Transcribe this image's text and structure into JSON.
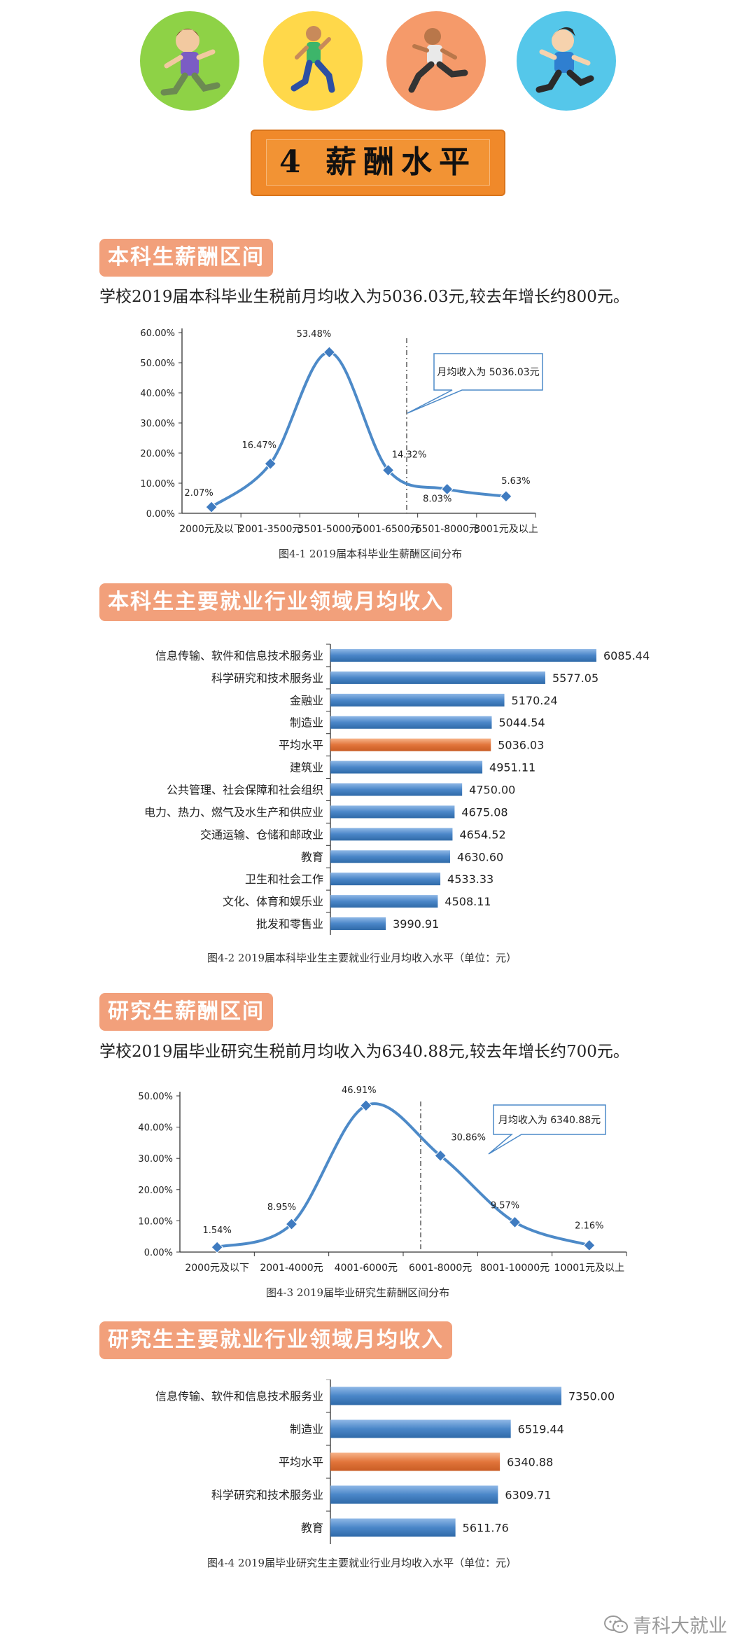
{
  "header": {
    "icons": [
      "running-girl-icon",
      "running-man-icon",
      "sprinter-icon",
      "running-boy-icon"
    ],
    "title": "4 薪酬水平",
    "colors": {
      "green": "#8ed246",
      "yellow": "#ffd84a",
      "orange": "#f59a6a",
      "blue": "#55c7ea",
      "accent": "#f0892a",
      "tag": "#f2a07b"
    }
  },
  "sections": {
    "undergrad_salary": {
      "tag": "本科生薪酬区间",
      "lead": "学校2019届本科毕业生税前月均收入为5036.03元,较去年增长约800元。",
      "caption": "图4-1  2019届本科毕业生薪酬区间分布"
    },
    "undergrad_industry": {
      "tag": "本科生主要就业行业领域月均收入",
      "caption": "图4-2  2019届本科毕业生主要就业行业月均收入水平（单位：元）"
    },
    "grad_salary": {
      "tag": "研究生薪酬区间",
      "lead": "学校2019届毕业研究生税前月均收入为6340.88元,较去年增长约700元。",
      "caption": "图4-3  2019届毕业研究生薪酬区间分布"
    },
    "grad_industry": {
      "tag": "研究生主要就业行业领域月均收入",
      "caption": "图4-4  2019届毕业研究生主要就业行业月均收入水平（单位：元）"
    }
  },
  "footer": {
    "account": "青科大就业",
    "icon": "wechat-icon"
  },
  "chart_data": [
    {
      "id": "undergrad_dist",
      "type": "line",
      "categories": [
        "2000元及以下",
        "2001-3500元",
        "3501-5000元",
        "5001-6500元",
        "6501-8000元",
        "8001元及以上"
      ],
      "values": [
        2.07,
        16.47,
        53.48,
        14.32,
        8.03,
        5.63
      ],
      "value_labels": [
        "2.07%",
        "16.47%",
        "53.48%",
        "14.32%",
        "8.03%",
        "5.63%"
      ],
      "yticks": [
        "0.00%",
        "10.00%",
        "20.00%",
        "30.00%",
        "40.00%",
        "50.00%",
        "60.00%"
      ],
      "ylim": [
        0,
        60
      ],
      "callout": "月均收入为 5036.03元",
      "mean_value": 5036.03
    },
    {
      "id": "undergrad_industry",
      "type": "bar",
      "orientation": "horizontal",
      "categories": [
        "信息传输、软件和信息技术服务业",
        "科学研究和技术服务业",
        "金融业",
        "制造业",
        "平均水平",
        "建筑业",
        "公共管理、社会保障和社会组织",
        "电力、热力、燃气及水生产和供应业",
        "交通运输、仓储和邮政业",
        "教育",
        "卫生和社会工作",
        "文化、体育和娱乐业",
        "批发和零售业"
      ],
      "values": [
        6085.44,
        5577.05,
        5170.24,
        5044.54,
        5036.03,
        4951.11,
        4750.0,
        4675.08,
        4654.52,
        4630.6,
        4533.33,
        4508.11,
        3990.91
      ],
      "value_labels": [
        "6085.44",
        "5577.05",
        "5170.24",
        "5044.54",
        "5036.03",
        "4951.11",
        "4750.00",
        "4675.08",
        "4654.52",
        "4630.60",
        "4533.33",
        "4508.11",
        "3990.91"
      ],
      "highlight": "平均水平"
    },
    {
      "id": "grad_dist",
      "type": "line",
      "categories": [
        "2000元及以下",
        "2001-4000元",
        "4001-6000元",
        "6001-8000元",
        "8001-10000元",
        "10001元及以上"
      ],
      "values": [
        1.54,
        8.95,
        46.91,
        30.86,
        9.57,
        2.16
      ],
      "value_labels": [
        "1.54%",
        "8.95%",
        "46.91%",
        "30.86%",
        "9.57%",
        "2.16%"
      ],
      "yticks": [
        "0.00%",
        "10.00%",
        "20.00%",
        "30.00%",
        "40.00%",
        "50.00%"
      ],
      "ylim": [
        0,
        50
      ],
      "callout": "月均收入为 6340.88元",
      "mean_value": 6340.88
    },
    {
      "id": "grad_industry",
      "type": "bar",
      "orientation": "horizontal",
      "categories": [
        "信息传输、软件和信息技术服务业",
        "制造业",
        "平均水平",
        "科学研究和技术服务业",
        "教育"
      ],
      "values": [
        7350.0,
        6519.44,
        6340.88,
        6309.71,
        5611.76
      ],
      "value_labels": [
        "7350.00",
        "6519.44",
        "6340.88",
        "6309.71",
        "5611.76"
      ],
      "highlight": "平均水平"
    }
  ]
}
